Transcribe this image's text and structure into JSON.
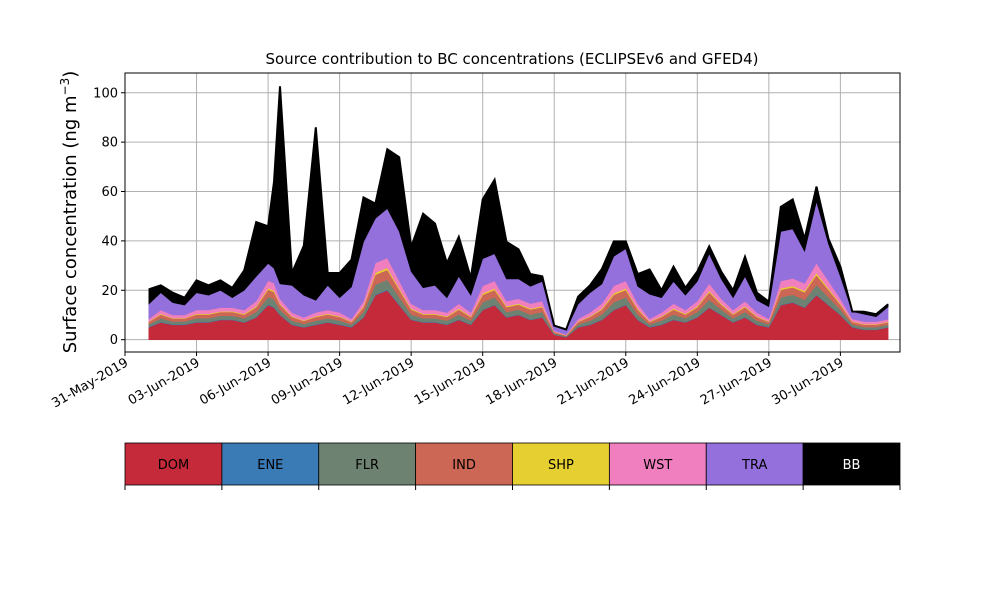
{
  "chart_data": {
    "type": "area",
    "title": "Source contribution to BC concentrations (ECLIPSEv6 and GFED4)",
    "ylabel": "Surface concentration (ng m",
    "ylabel_sup": "−3",
    "ylabel_close": ")",
    "xlabel": "",
    "stacked": true,
    "grid": true,
    "xlim": [
      "2019-05-31",
      "2019-07-02T12:00"
    ],
    "ylim": [
      -5,
      108
    ],
    "x_tick_labels": [
      "31-May-2019",
      "03-Jun-2019",
      "06-Jun-2019",
      "09-Jun-2019",
      "12-Jun-2019",
      "15-Jun-2019",
      "18-Jun-2019",
      "21-Jun-2019",
      "24-Jun-2019",
      "27-Jun-2019",
      "30-Jun-2019"
    ],
    "x_tick_dates": [
      "2019-05-31",
      "2019-06-03",
      "2019-06-06",
      "2019-06-09",
      "2019-06-12",
      "2019-06-15",
      "2019-06-18",
      "2019-06-21",
      "2019-06-24",
      "2019-06-27",
      "2019-06-30"
    ],
    "y_ticks": [
      0,
      20,
      40,
      60,
      80,
      100
    ],
    "x": [
      "2019-06-01",
      "2019-06-01T12:00",
      "2019-06-02",
      "2019-06-02T12:00",
      "2019-06-03",
      "2019-06-03T12:00",
      "2019-06-04",
      "2019-06-04T12:00",
      "2019-06-05",
      "2019-06-05T12:00",
      "2019-06-06",
      "2019-06-06T06:00",
      "2019-06-06T12:00",
      "2019-06-07",
      "2019-06-07T12:00",
      "2019-06-08",
      "2019-06-08T12:00",
      "2019-06-09",
      "2019-06-09T12:00",
      "2019-06-10",
      "2019-06-10T12:00",
      "2019-06-11",
      "2019-06-11T12:00",
      "2019-06-12",
      "2019-06-12T12:00",
      "2019-06-13",
      "2019-06-13T12:00",
      "2019-06-14",
      "2019-06-14T12:00",
      "2019-06-15",
      "2019-06-15T12:00",
      "2019-06-16",
      "2019-06-16T12:00",
      "2019-06-17",
      "2019-06-17T12:00",
      "2019-06-18",
      "2019-06-18T12:00",
      "2019-06-19",
      "2019-06-19T12:00",
      "2019-06-20",
      "2019-06-20T12:00",
      "2019-06-21",
      "2019-06-21T12:00",
      "2019-06-22",
      "2019-06-22T12:00",
      "2019-06-23",
      "2019-06-23T12:00",
      "2019-06-24",
      "2019-06-24T12:00",
      "2019-06-25",
      "2019-06-25T12:00",
      "2019-06-26",
      "2019-06-26T12:00",
      "2019-06-27",
      "2019-06-27T12:00",
      "2019-06-28",
      "2019-06-28T12:00",
      "2019-06-29",
      "2019-06-29T12:00",
      "2019-06-30",
      "2019-06-30T12:00",
      "2019-07-01",
      "2019-07-01T12:00",
      "2019-07-02"
    ],
    "series": [
      {
        "name": "DOM",
        "color": "#c42a3a",
        "values": [
          5,
          7,
          6,
          6,
          7,
          7,
          8,
          8,
          7,
          9,
          14,
          13,
          10,
          6,
          5,
          6,
          7,
          6,
          5,
          9,
          18,
          20,
          14,
          8,
          7,
          7,
          6,
          8,
          6,
          12,
          14,
          9,
          10,
          8,
          9,
          2,
          1,
          5,
          6,
          8,
          12,
          14,
          8,
          5,
          6,
          8,
          7,
          9,
          13,
          10,
          7,
          9,
          6,
          5,
          14,
          15,
          13,
          18,
          14,
          10,
          5,
          4,
          4,
          5
        ]
      },
      {
        "name": "ENE",
        "color": "#3a7ab5",
        "values": [
          0.2,
          0.2,
          0.2,
          0.2,
          0.2,
          0.2,
          0.2,
          0.2,
          0.2,
          0.2,
          0.3,
          0.3,
          0.2,
          0.2,
          0.2,
          0.2,
          0.2,
          0.2,
          0.2,
          0.2,
          0.3,
          0.3,
          0.3,
          0.2,
          0.2,
          0.2,
          0.2,
          0.2,
          0.2,
          0.2,
          0.2,
          0.2,
          0.2,
          0.2,
          0.2,
          0.1,
          0.1,
          0.2,
          0.2,
          0.2,
          0.2,
          0.2,
          0.2,
          0.2,
          0.2,
          0.2,
          0.2,
          0.2,
          0.2,
          0.2,
          0.2,
          0.2,
          0.2,
          0.2,
          0.2,
          0.2,
          0.2,
          0.2,
          0.2,
          0.2,
          0.2,
          0.1,
          0.1,
          0.1
        ]
      },
      {
        "name": "FLR",
        "color": "#6e8272",
        "values": [
          1,
          1.5,
          1.2,
          1.2,
          1.5,
          1.5,
          1.5,
          1.5,
          1.5,
          2,
          3,
          3,
          2,
          1.5,
          1.2,
          1.5,
          1.5,
          1.5,
          1,
          2,
          4,
          4,
          3,
          2,
          1.5,
          1.5,
          1.5,
          2,
          1.5,
          3,
          3,
          2,
          2,
          2,
          2,
          0.5,
          0.3,
          1,
          1.5,
          2,
          3,
          3,
          2,
          1,
          1.5,
          2,
          1.5,
          2,
          3,
          2,
          1.5,
          2,
          1.5,
          1,
          3,
          3,
          3,
          4,
          3,
          2,
          1,
          1,
          1,
          1
        ]
      },
      {
        "name": "IND",
        "color": "#cc6655",
        "values": [
          1,
          1.5,
          1.2,
          1.2,
          1.5,
          1.5,
          1.5,
          1.5,
          1.5,
          2,
          3,
          3,
          2,
          1.5,
          1.2,
          1.5,
          1.5,
          1.5,
          1,
          2,
          4,
          4,
          3,
          2,
          1.5,
          1.5,
          1.5,
          2,
          1.5,
          3,
          3,
          2,
          2,
          2,
          2,
          0.5,
          0.3,
          1,
          1.5,
          2,
          3,
          3,
          2,
          1,
          1.5,
          2,
          1.5,
          2,
          3,
          2,
          1.5,
          2,
          1.5,
          1,
          3,
          3,
          3,
          4,
          3,
          2,
          1,
          1,
          1,
          1
        ]
      },
      {
        "name": "SHP",
        "color": "#e6cf30",
        "values": [
          0.2,
          0.3,
          0.2,
          0.2,
          0.3,
          0.3,
          0.3,
          0.3,
          0.3,
          0.4,
          0.6,
          0.6,
          0.4,
          0.3,
          0.2,
          0.3,
          0.3,
          0.3,
          0.2,
          0.4,
          0.8,
          0.8,
          0.6,
          0.4,
          0.3,
          0.3,
          0.3,
          0.4,
          0.3,
          0.6,
          0.6,
          0.4,
          0.4,
          0.4,
          0.4,
          0.1,
          0.1,
          0.2,
          0.3,
          0.4,
          0.6,
          0.6,
          0.4,
          0.2,
          0.3,
          0.4,
          0.3,
          0.4,
          0.6,
          0.4,
          0.3,
          0.4,
          0.3,
          0.2,
          0.6,
          0.6,
          0.6,
          0.8,
          0.6,
          0.4,
          0.2,
          0.2,
          0.2,
          0.2
        ]
      },
      {
        "name": "WST",
        "color": "#f07fbf",
        "values": [
          1,
          1.5,
          1.2,
          1.2,
          1.5,
          1.5,
          1.5,
          1.5,
          1.5,
          2,
          3,
          3,
          2,
          1.5,
          1.2,
          1.5,
          1.5,
          1.5,
          1,
          2,
          4,
          4,
          3,
          2,
          1.5,
          1.5,
          1.5,
          2,
          1.5,
          3,
          3,
          2,
          2,
          2,
          2,
          0.5,
          0.3,
          1,
          1.5,
          2,
          3,
          3,
          2,
          1,
          1.5,
          2,
          1.5,
          2,
          3,
          2,
          1.5,
          2,
          1.5,
          1,
          3,
          3,
          3,
          4,
          3,
          2,
          1,
          1,
          1,
          1
        ]
      },
      {
        "name": "TRA",
        "color": "#9370db",
        "values": [
          6,
          7,
          5,
          4,
          7,
          6,
          7,
          4,
          8,
          10,
          7,
          6,
          6,
          11,
          9,
          5,
          10,
          6,
          13,
          24,
          18,
          20,
          20,
          13,
          9,
          10,
          6,
          11,
          7,
          11,
          11,
          9,
          8,
          7,
          8,
          2,
          2,
          6,
          8,
          8,
          12,
          13,
          7,
          10,
          6,
          9,
          6,
          8,
          12,
          8,
          5,
          10,
          5,
          5,
          20,
          20,
          13,
          25,
          15,
          9,
          3,
          3,
          2,
          5
        ]
      },
      {
        "name": "BB",
        "color": "#000000",
        "values": [
          6,
          3,
          4,
          3,
          5,
          4,
          4,
          4,
          8,
          22,
          15,
          35,
          80,
          5,
          20,
          70,
          5,
          10,
          11,
          18,
          6,
          24,
          30,
          10,
          30,
          25,
          14,
          16,
          7,
          24,
          30,
          15,
          12,
          5,
          2,
          0,
          0,
          3,
          3,
          6,
          6,
          3,
          5,
          10,
          3,
          6,
          3,
          4,
          3,
          3,
          3,
          8,
          3,
          2,
          10,
          12,
          5,
          6,
          2,
          4,
          0,
          1,
          1,
          1
        ]
      }
    ]
  }
}
